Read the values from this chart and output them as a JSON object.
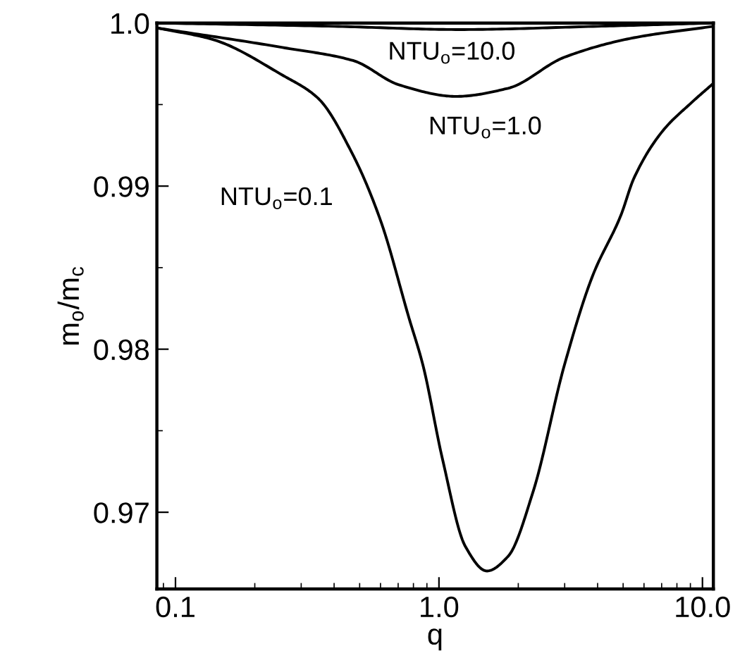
{
  "chart_data": {
    "type": "line",
    "xlabel": "q",
    "ylabel": "m$_{o}$/m$_{c}$",
    "log": "x",
    "xlim": [
      0.085,
      11.0
    ],
    "ylim": [
      0.9653,
      1.0
    ],
    "xticks": [
      0.1,
      {
        "value": 1,
        "label": "1.0"
      },
      {
        "value": 10,
        "label": "10.0"
      }
    ],
    "yticks": [
      {
        "value": 1,
        "label": "1.0"
      },
      0.99,
      0.98,
      0.97
    ],
    "grid": false,
    "marker": "none",
    "line_style": "solid",
    "series": [
      {
        "color": "#000000",
        "x": [
          0.085,
          0.4,
          1.2,
          4.0,
          11.0
        ],
        "values": [
          1.0,
          0.9998,
          0.9996,
          0.9998,
          1.0
        ]
      },
      {
        "color": "#000000",
        "x": [
          0.085,
          0.255,
          0.472,
          0.708,
          1.16,
          1.83,
          2.99,
          5.5,
          11.0
        ],
        "values": [
          0.9997,
          0.9985,
          0.9977,
          0.9962,
          0.9955,
          0.996,
          0.9979,
          0.9991,
          0.9998
        ]
      },
      {
        "color": "#000000",
        "x": [
          0.085,
          0.138,
          0.255,
          0.347,
          0.472,
          0.6,
          0.77,
          0.87,
          1.03,
          1.26,
          1.52,
          1.83,
          2.28,
          2.99,
          3.83,
          4.9,
          5.5,
          7.08,
          9.06,
          11.0
        ],
        "values": [
          0.9997,
          0.999,
          0.9968,
          0.9954,
          0.9919,
          0.9879,
          0.9819,
          0.979,
          0.9733,
          0.9679,
          0.9664,
          0.9673,
          0.9713,
          0.979,
          0.9845,
          0.9882,
          0.9905,
          0.9934,
          0.9951,
          0.9963
        ]
      }
    ],
    "annotations": [
      "NTU$_{o}$=10.0",
      "NTU$_{o}$=1.0",
      "NTU$_{o}$=0.1"
    ]
  }
}
